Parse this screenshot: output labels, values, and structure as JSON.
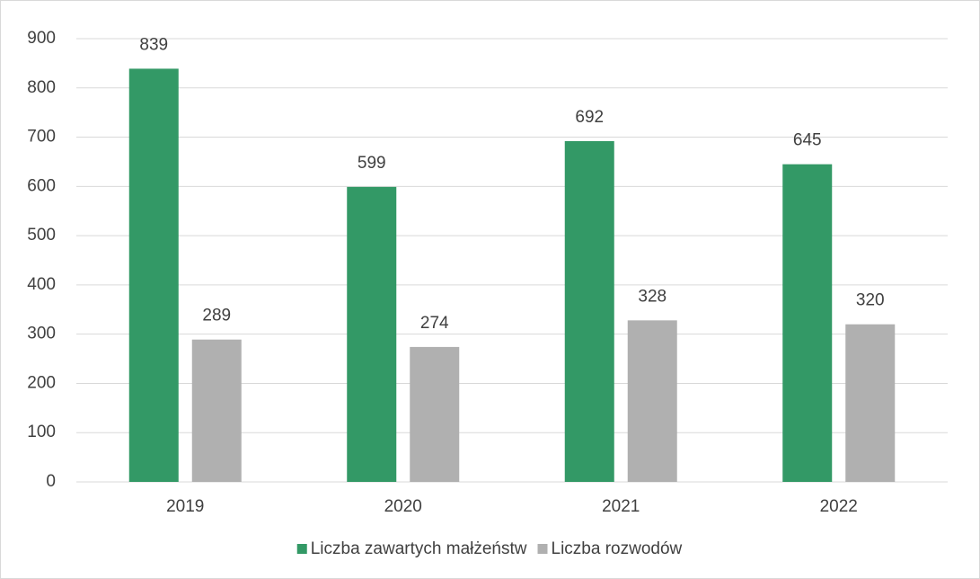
{
  "chart_data": {
    "type": "bar",
    "categories": [
      "2019",
      "2020",
      "2021",
      "2022"
    ],
    "series": [
      {
        "name": "Liczba zawartych małżeństw",
        "color": "#339966",
        "values": [
          839,
          599,
          692,
          645
        ]
      },
      {
        "name": "Liczba rozwodów",
        "color": "#b0b0b0",
        "values": [
          289,
          274,
          328,
          320
        ]
      }
    ],
    "ylim": [
      0,
      900
    ],
    "yticks": [
      0,
      100,
      200,
      300,
      400,
      500,
      600,
      700,
      800,
      900
    ],
    "grid": true,
    "legend": "bottom"
  }
}
